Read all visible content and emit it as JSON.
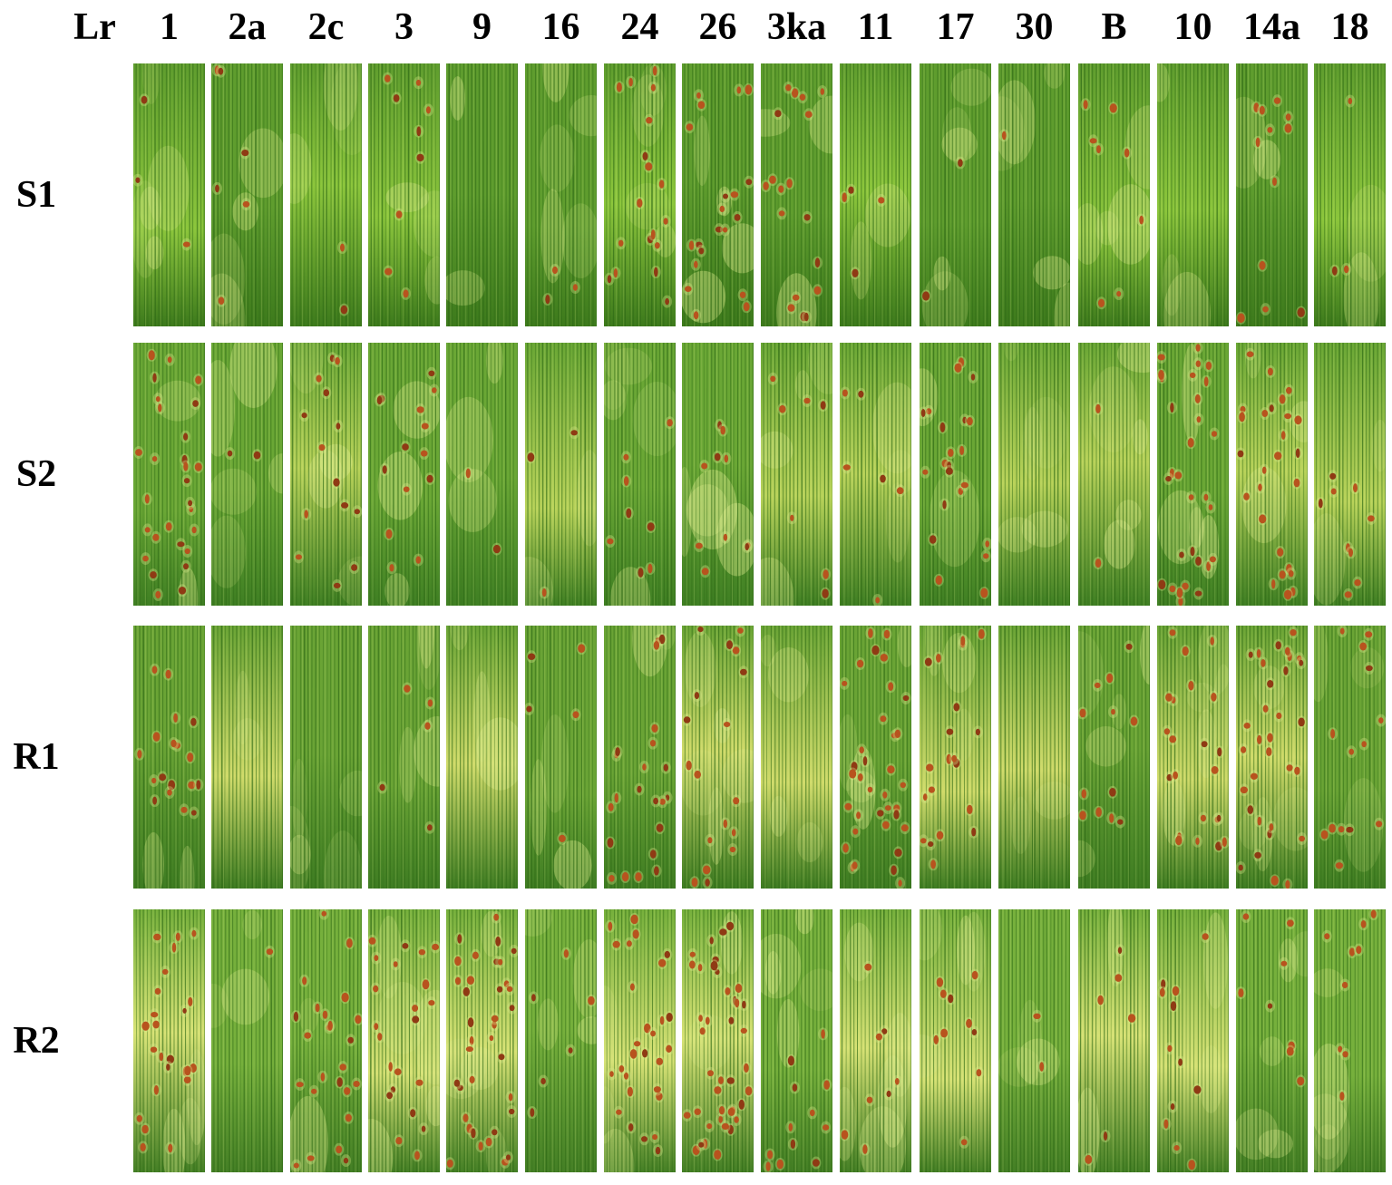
{
  "header": {
    "corner_label": "Lr",
    "columns": [
      "1",
      "2a",
      "2c",
      "3",
      "9",
      "16",
      "24",
      "26",
      "3ka",
      "11",
      "17",
      "30",
      "B",
      "10",
      "14a",
      "18"
    ]
  },
  "rows": [
    {
      "label": "S1",
      "palette": {
        "base": "#5f9d2e",
        "light": "#8cc63c",
        "dark": "#3d7a1c"
      },
      "lesion_density": [
        3,
        6,
        2,
        9,
        0,
        3,
        18,
        20,
        18,
        4,
        2,
        1,
        8,
        0,
        12,
        3
      ]
    },
    {
      "label": "S2",
      "palette": {
        "base": "#6aa735",
        "light": "#b9d35a",
        "dark": "#3f7f23"
      },
      "lesion_density": [
        28,
        2,
        14,
        14,
        2,
        3,
        8,
        10,
        7,
        6,
        22,
        0,
        2,
        30,
        26,
        9
      ]
    },
    {
      "label": "R1",
      "palette": {
        "base": "#6aa435",
        "light": "#d0db6a",
        "dark": "#3e7c22"
      },
      "lesion_density": [
        18,
        0,
        0,
        5,
        0,
        5,
        22,
        18,
        0,
        35,
        20,
        0,
        12,
        22,
        32,
        14
      ]
    },
    {
      "label": "R2",
      "palette": {
        "base": "#76b03c",
        "light": "#d7e275",
        "dark": "#447f25"
      },
      "lesion_density": [
        24,
        1,
        24,
        22,
        36,
        6,
        28,
        40,
        12,
        8,
        10,
        2,
        6,
        12,
        8,
        9
      ]
    }
  ],
  "colors": {
    "lesion": "#b8531e",
    "lesion_dark": "#8f3a14",
    "stripe": "#2f6a16",
    "highlight": "#d9e98a",
    "background": "#ffffff"
  }
}
